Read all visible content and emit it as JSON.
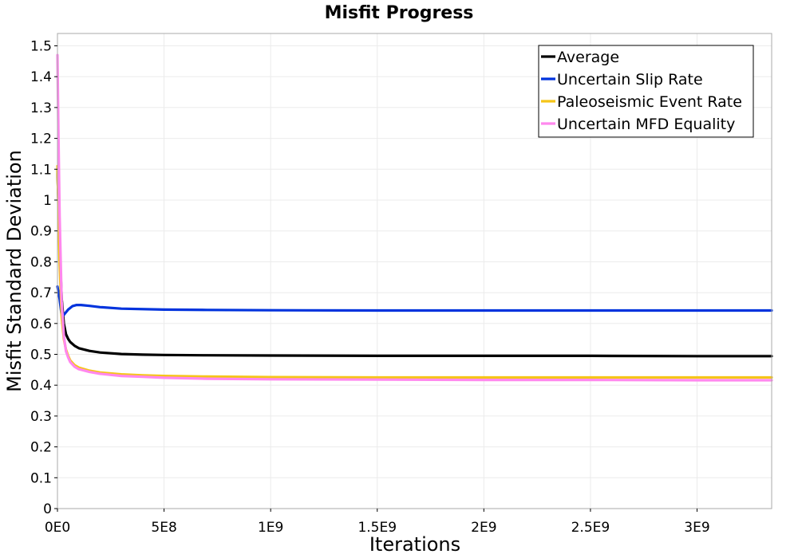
{
  "chart_data": {
    "type": "line",
    "title": "Misfit Progress",
    "xlabel": "Iterations",
    "ylabel": "Misfit Standard Deviation",
    "xlim": [
      0,
      3350000000
    ],
    "ylim": [
      0,
      1.54
    ],
    "grid": true,
    "legend_position": "top-right",
    "x_ticks": [
      {
        "value": 0,
        "label": "0E0"
      },
      {
        "value": 500000000,
        "label": "5E8"
      },
      {
        "value": 1000000000,
        "label": "1E9"
      },
      {
        "value": 1500000000,
        "label": "1.5E9"
      },
      {
        "value": 2000000000,
        "label": "2E9"
      },
      {
        "value": 2500000000,
        "label": "2.5E9"
      },
      {
        "value": 3000000000,
        "label": "3E9"
      }
    ],
    "y_ticks": [
      {
        "value": 0,
        "label": "0"
      },
      {
        "value": 0.1,
        "label": "0.1"
      },
      {
        "value": 0.2,
        "label": "0.2"
      },
      {
        "value": 0.3,
        "label": "0.3"
      },
      {
        "value": 0.4,
        "label": "0.4"
      },
      {
        "value": 0.5,
        "label": "0.5"
      },
      {
        "value": 0.6,
        "label": "0.6"
      },
      {
        "value": 0.7,
        "label": "0.7"
      },
      {
        "value": 0.8,
        "label": "0.8"
      },
      {
        "value": 0.9,
        "label": "0.9"
      },
      {
        "value": 1.0,
        "label": "1"
      },
      {
        "value": 1.1,
        "label": "1.1"
      },
      {
        "value": 1.2,
        "label": "1.2"
      },
      {
        "value": 1.3,
        "label": "1.3"
      },
      {
        "value": 1.4,
        "label": "1.4"
      },
      {
        "value": 1.5,
        "label": "1.5"
      }
    ],
    "series": [
      {
        "name": "Average",
        "color": "#000000",
        "x": [
          0,
          10000000,
          20000000,
          30000000,
          40000000,
          50000000,
          60000000,
          80000000,
          100000000,
          150000000,
          200000000,
          300000000,
          400000000,
          500000000,
          700000000,
          1000000000,
          1500000000,
          2000000000,
          2500000000,
          3000000000,
          3350000000
        ],
        "y": [
          1.1,
          0.85,
          0.68,
          0.6,
          0.565,
          0.55,
          0.54,
          0.528,
          0.52,
          0.511,
          0.506,
          0.501,
          0.499,
          0.498,
          0.497,
          0.496,
          0.495,
          0.495,
          0.495,
          0.494,
          0.494
        ]
      },
      {
        "name": "Uncertain Slip Rate",
        "color": "#0033dd",
        "x": [
          0,
          10000000,
          20000000,
          30000000,
          50000000,
          70000000,
          90000000,
          110000000,
          150000000,
          200000000,
          300000000,
          500000000,
          700000000,
          1000000000,
          1500000000,
          2000000000,
          2500000000,
          3000000000,
          3350000000
        ],
        "y": [
          0.72,
          0.68,
          0.625,
          0.628,
          0.645,
          0.656,
          0.66,
          0.66,
          0.657,
          0.653,
          0.648,
          0.645,
          0.644,
          0.643,
          0.642,
          0.642,
          0.642,
          0.642,
          0.642
        ]
      },
      {
        "name": "Paleoseismic Event Rate",
        "color": "#f5c518",
        "x": [
          0,
          10000000,
          20000000,
          30000000,
          40000000,
          50000000,
          60000000,
          80000000,
          100000000,
          150000000,
          200000000,
          300000000,
          400000000,
          500000000,
          700000000,
          1000000000,
          1500000000,
          2000000000,
          2500000000,
          3000000000,
          3350000000
        ],
        "y": [
          1.11,
          0.8,
          0.62,
          0.55,
          0.515,
          0.495,
          0.48,
          0.465,
          0.457,
          0.447,
          0.441,
          0.435,
          0.432,
          0.43,
          0.428,
          0.426,
          0.425,
          0.425,
          0.425,
          0.425,
          0.425
        ]
      },
      {
        "name": "Uncertain MFD Equality",
        "color": "#ff88ee",
        "x": [
          0,
          5000000,
          10000000,
          20000000,
          30000000,
          40000000,
          50000000,
          60000000,
          80000000,
          100000000,
          150000000,
          200000000,
          300000000,
          400000000,
          500000000,
          700000000,
          1000000000,
          1500000000,
          2000000000,
          2500000000,
          3000000000,
          3350000000
        ],
        "y": [
          1.47,
          1.2,
          0.95,
          0.67,
          0.56,
          0.51,
          0.49,
          0.475,
          0.46,
          0.452,
          0.443,
          0.437,
          0.43,
          0.427,
          0.424,
          0.421,
          0.419,
          0.418,
          0.417,
          0.417,
          0.416,
          0.416
        ]
      }
    ]
  }
}
